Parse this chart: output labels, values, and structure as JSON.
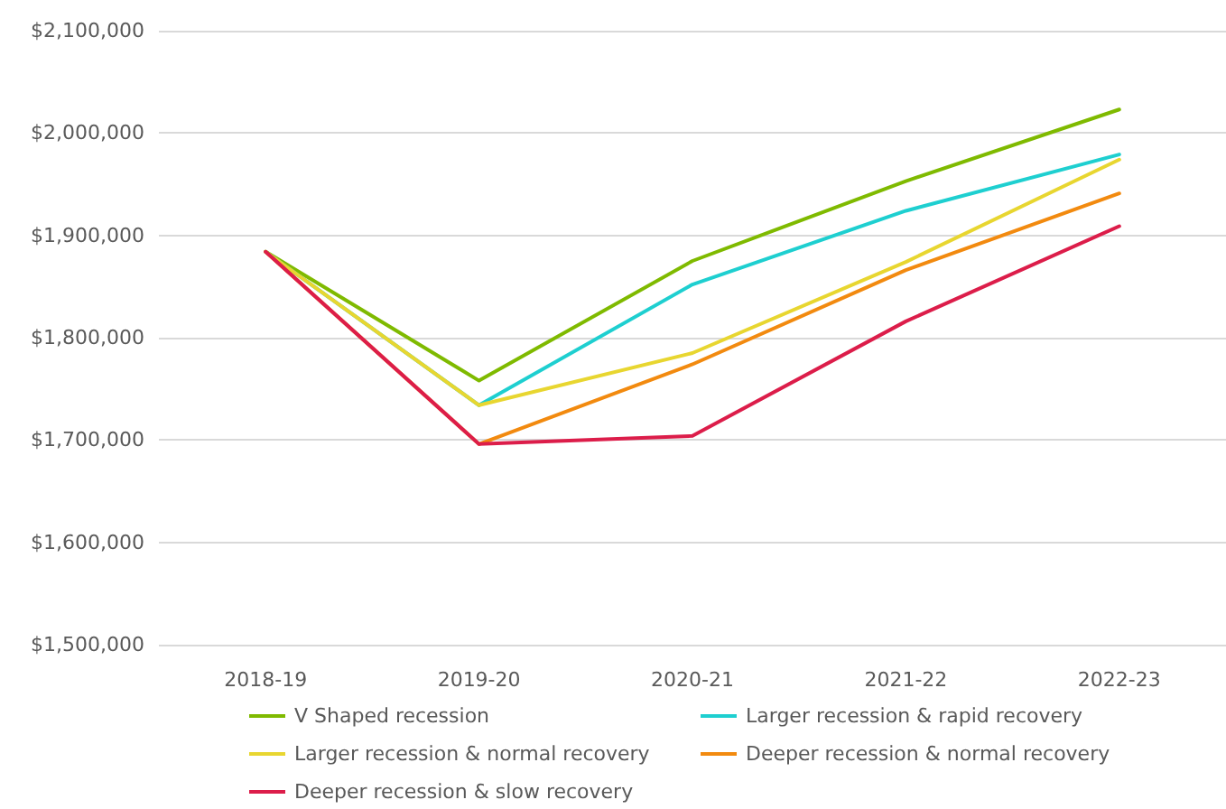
{
  "chart_data": {
    "type": "line",
    "categories": [
      "2018-19",
      "2019-20",
      "2020-21",
      "2021-22",
      "2022-23"
    ],
    "series": [
      {
        "name": "V Shaped recession",
        "color": "#7fba00",
        "values": [
          1884000,
          1758000,
          1875000,
          1953000,
          2023000
        ]
      },
      {
        "name": "Larger recession & rapid recovery",
        "color": "#1ecfd0",
        "values": [
          1884000,
          1734000,
          1852000,
          1924000,
          1979000
        ]
      },
      {
        "name": "Larger recession & normal recovery",
        "color": "#e8d630",
        "values": [
          1884000,
          1734000,
          1785000,
          1874000,
          1974000
        ]
      },
      {
        "name": "Deeper recession & normal recovery",
        "color": "#f28a0f",
        "values": [
          1884000,
          1696000,
          1774000,
          1866000,
          1941000
        ]
      },
      {
        "name": "Deeper recession & slow recovery",
        "color": "#dc1d4a",
        "values": [
          1884000,
          1696000,
          1704000,
          1816000,
          1909000
        ]
      }
    ],
    "ylim": [
      1500000,
      2100000
    ],
    "yticks": [
      {
        "value": 1500000,
        "label": "$1,500,000"
      },
      {
        "value": 1600000,
        "label": "$1,600,000"
      },
      {
        "value": 1700000,
        "label": "$1,700,000"
      },
      {
        "value": 1800000,
        "label": "$1,800,000"
      },
      {
        "value": 1900000,
        "label": "$1,900,000"
      },
      {
        "value": 2000000,
        "label": "$2,000,000"
      },
      {
        "value": 2100000,
        "label": "$2,100,000"
      }
    ],
    "grid": "y",
    "legend": "bottom",
    "marker": "none",
    "line_style": "solid"
  }
}
